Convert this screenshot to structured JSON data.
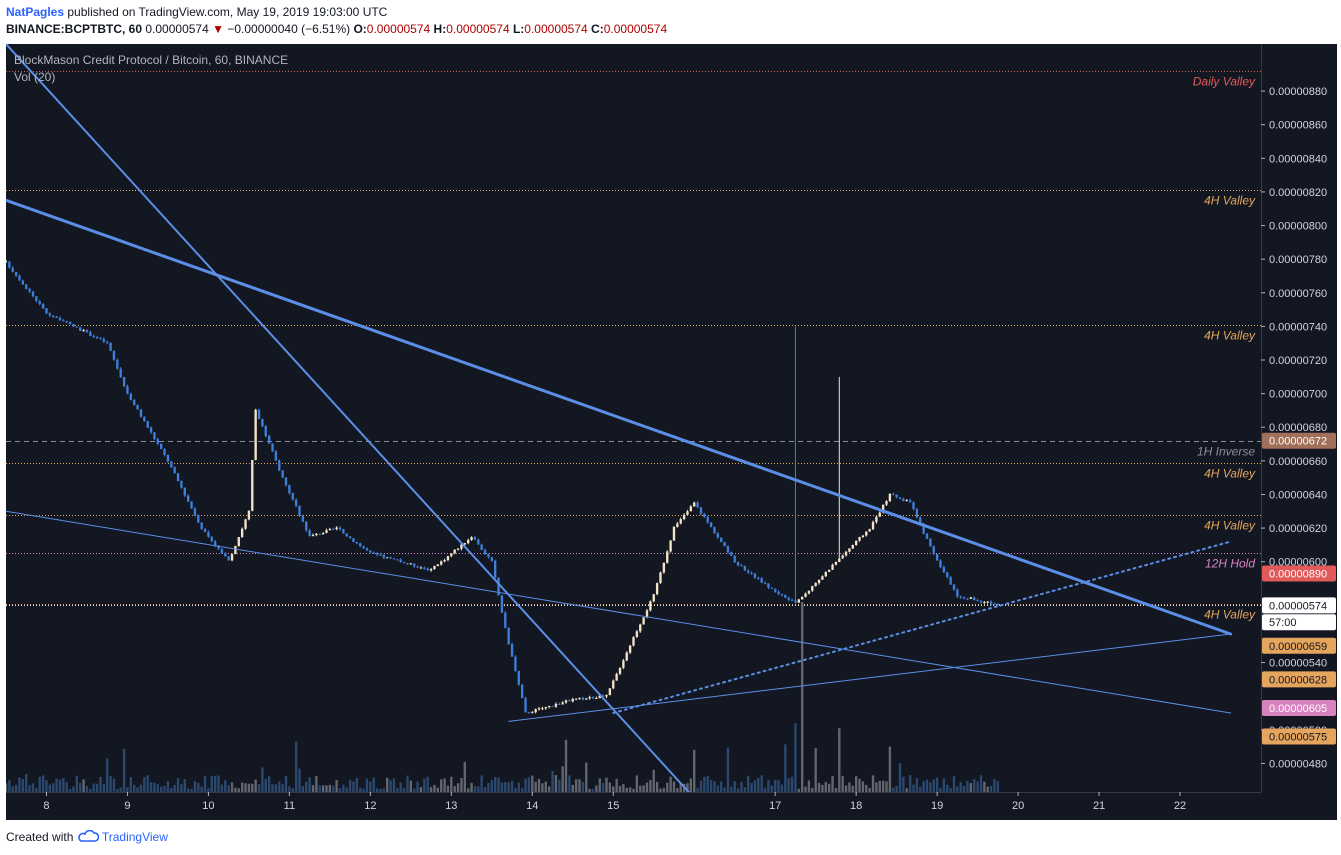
{
  "header": {
    "author": "NatPagles",
    "published": "published on TradingView.com, May 19, 2019 19:03:00 UTC",
    "symbol_line": "BINANCE:BCPTBTC, 60",
    "last_price": "0.00000574",
    "change_arrow": "▼",
    "change": "−0.00000040 (−6.51%)",
    "o_label": "O:",
    "o_value": "0.00000574",
    "h_label": "H:",
    "h_value": "0.00000574",
    "l_label": "L:",
    "l_value": "0.00000574",
    "c_label": "C:",
    "c_value": "0.00000574"
  },
  "legend": {
    "title": "BlockMason Credit Protocol / Bitcoin, 60, BINANCE",
    "volume": "Vol (20)"
  },
  "footer": {
    "created_with": "Created with",
    "brand": "TradingView"
  },
  "colors": {
    "background": "#131722",
    "candle_up": "#f3e3c8",
    "candle_down": "#3d7fd9",
    "trendline": "#5b8ee6",
    "level_orange": "#e5a55d",
    "level_red": "#e05a5a"
  },
  "chart_data": {
    "type": "candlestick",
    "title": "BlockMason Credit Protocol / Bitcoin, 60, BINANCE",
    "y_range": [
      4.63e-06,
      9.08e-06
    ],
    "y_ticks": [
      "0.00000880",
      "0.00000860",
      "0.00000840",
      "0.00000820",
      "0.00000800",
      "0.00000780",
      "0.00000760",
      "0.00000740",
      "0.00000720",
      "0.00000700",
      "0.00000680",
      "0.00000660",
      "0.00000640",
      "0.00000620",
      "0.00000600",
      "0.00000540",
      "0.00000500",
      "0.00000480"
    ],
    "x_range": [
      "May 7 12:00",
      "May 23 00:00"
    ],
    "x_ticks": [
      "8",
      "9",
      "10",
      "11",
      "12",
      "13",
      "14",
      "15",
      "17",
      "18",
      "19",
      "20",
      "21",
      "22"
    ],
    "horizontal_levels": [
      {
        "label": "Daily Valley",
        "price": 8.92e-06,
        "color": "#e05a5a"
      },
      {
        "label": "4H Valley",
        "price": 8.21e-06,
        "color": "#e5a55d"
      },
      {
        "label": "4H Valley",
        "price": 7.41e-06,
        "color": "#e5a55d"
      },
      {
        "label": "1H Inverse",
        "price": 6.72e-06,
        "color": "#8a8f99"
      },
      {
        "label": "4H Valley",
        "price": 6.59e-06,
        "color": "#e5a55d"
      },
      {
        "label": "4H Valley",
        "price": 6.28e-06,
        "color": "#e5a55d"
      },
      {
        "label": "12H Hold",
        "price": 6.05e-06,
        "color": "#d982c0"
      },
      {
        "label": "4H Valley",
        "price": 5.75e-06,
        "color": "#e5a55d"
      }
    ],
    "price_tags": [
      {
        "text": "0.00000672",
        "price": 6.72e-06,
        "bg": "#a0705a",
        "fg": "#ffffff"
      },
      {
        "text": "0.00000890",
        "price": 5.93e-06,
        "bg": "#e05a5a",
        "fg": "#ffffff"
      },
      {
        "text": "0.00000574",
        "price": 5.74e-06,
        "bg": "#ffffff",
        "fg": "#131722"
      },
      {
        "text": "57:00",
        "price": 5.64e-06,
        "bg": "#ffffff",
        "fg": "#131722"
      },
      {
        "text": "0.00000659",
        "price": 5.5e-06,
        "bg": "#e5a55d",
        "fg": "#131722"
      },
      {
        "text": "0.00000628",
        "price": 5.3e-06,
        "bg": "#e5a55d",
        "fg": "#131722"
      },
      {
        "text": "0.00000605",
        "price": 5.13e-06,
        "bg": "#d982c0",
        "fg": "#ffffff"
      },
      {
        "text": "0.00000575",
        "price": 4.96e-06,
        "bg": "#e5a55d",
        "fg": "#131722"
      }
    ],
    "trendlines": [
      {
        "from": [
          "May 7 12:00",
          9.08e-06
        ],
        "to": [
          "May 16 12:00",
          4.33e-06
        ],
        "style": "solid",
        "width": 2
      },
      {
        "from": [
          "May 7 12:00",
          8.15e-06
        ],
        "to": [
          "May 22 15:00",
          5.57e-06
        ],
        "style": "solid",
        "width": 3
      },
      {
        "from": [
          "May 7 12:00",
          6.3e-06
        ],
        "to": [
          "May 22 15:00",
          5.1e-06
        ],
        "style": "solid",
        "width": 1
      },
      {
        "from": [
          "May 13 17:00",
          5.05e-06
        ],
        "to": [
          "May 22 15:00",
          5.57e-06
        ],
        "style": "solid",
        "width": 1
      },
      {
        "from": [
          "May 15 00:00",
          5.1e-06
        ],
        "to": [
          "May 22 15:00",
          6.12e-06
        ],
        "style": "dotted",
        "width": 2
      }
    ],
    "path_key_points": [
      [
        "May 7 12:00",
        7.78e-06
      ],
      [
        "May 8 00:00",
        7.48e-06
      ],
      [
        "May 8 18:00",
        7.3e-06
      ],
      [
        "May 9 00:00",
        7e-06
      ],
      [
        "May 9 12:00",
        6.6e-06
      ],
      [
        "May 9 22:00",
        6.2e-06
      ],
      [
        "May 10 06:00",
        6e-06
      ],
      [
        "May 10 12:00",
        6.3e-06
      ],
      [
        "May 10 14:00",
        6.9e-06
      ],
      [
        "May 10 22:00",
        6.5e-06
      ],
      [
        "May 11 06:00",
        6.15e-06
      ],
      [
        "May 11 14:00",
        6.2e-06
      ],
      [
        "May 12 00:00",
        6.05e-06
      ],
      [
        "May 12 18:00",
        5.95e-06
      ],
      [
        "May 13 06:00",
        6.15e-06
      ],
      [
        "May 13 12:00",
        6e-06
      ],
      [
        "May 13 16:00",
        5.6e-06
      ],
      [
        "May 13 22:00",
        5.1e-06
      ],
      [
        "May 14 12:00",
        5.18e-06
      ],
      [
        "May 14 22:00",
        5.2e-06
      ],
      [
        "May 15 06:00",
        5.55e-06
      ],
      [
        "May 15 12:00",
        5.8e-06
      ],
      [
        "May 15 18:00",
        6.2e-06
      ],
      [
        "May 16 00:00",
        6.35e-06
      ],
      [
        "May 16 12:00",
        6e-06
      ],
      [
        "May 16 22:00",
        5.85e-06
      ],
      [
        "May 17 06:00",
        5.75e-06
      ],
      [
        "May 17 18:00",
        6e-06
      ],
      [
        "May 18 04:00",
        6.2e-06
      ],
      [
        "May 18 10:00",
        6.4e-06
      ],
      [
        "May 18 16:00",
        6.35e-06
      ],
      [
        "May 19 00:00",
        6e-06
      ],
      [
        "May 19 06:00",
        5.8e-06
      ],
      [
        "May 19 18:00",
        5.74e-06
      ]
    ],
    "volume_label": "Vol (20)"
  }
}
